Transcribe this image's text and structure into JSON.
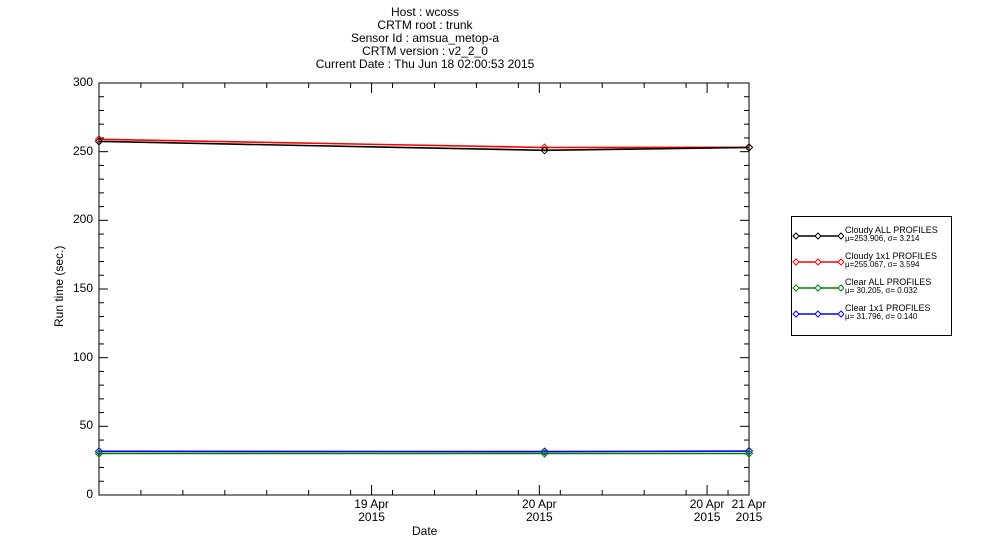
{
  "header": {
    "lines": [
      "Host : wcoss",
      "CRTM root : trunk",
      "Sensor Id : amsua_metop-a",
      "CRTM version : v2_2_0",
      "Current Date : Thu Jun 18 02:00:53 2015"
    ]
  },
  "chart_data": {
    "type": "line",
    "title": "",
    "xlabel": "Date",
    "ylabel": "Run time (sec.)",
    "ylim": [
      0,
      300
    ],
    "yticks": [
      0,
      50,
      100,
      150,
      200,
      250,
      300
    ],
    "x_date_range": [
      "2015-04-18T10:00",
      "2015-04-21T00:00"
    ],
    "x_ticks": [
      {
        "date": "2015-04-19T12:00",
        "line1": "19 Apr",
        "line2": "2015"
      },
      {
        "date": "2015-04-20T04:00",
        "line1": "20 Apr",
        "line2": "2015"
      },
      {
        "date": "2015-04-20T20:00",
        "line1": "20 Apr",
        "line2": "2015"
      },
      {
        "date": "2015-04-21T00:00",
        "line1": "21 Apr",
        "line2": "2015"
      }
    ],
    "x": [
      "2015-04-18T10:00",
      "2015-04-20T04:30",
      "2015-04-21T00:00"
    ],
    "series": [
      {
        "name": "Cloudy ALL PROFILES",
        "stats": "μ=253.906, σ= 3.214",
        "color": "#000000",
        "values": [
          257.5,
          251.0,
          253.0
        ]
      },
      {
        "name": "Cloudy 1x1 PROFILES",
        "stats": "μ=255.067, σ= 3.594",
        "color": "#ff0000",
        "values": [
          259.0,
          253.0,
          253.2
        ]
      },
      {
        "name": "Clear ALL PROFILES",
        "stats": "μ= 30.205, σ= 0.032",
        "color": "#008000",
        "values": [
          30.2,
          30.2,
          30.2
        ]
      },
      {
        "name": "Clear 1x1 PROFILES",
        "stats": "μ= 31.796, σ= 0.140",
        "color": "#0000ff",
        "values": [
          31.8,
          31.6,
          32.0
        ]
      }
    ],
    "legend_position": "right",
    "grid": false
  }
}
